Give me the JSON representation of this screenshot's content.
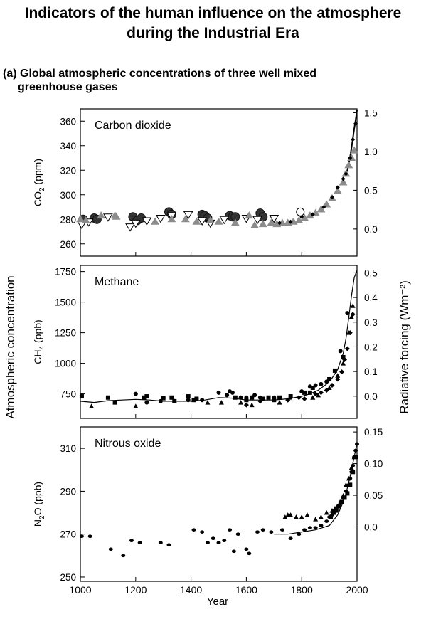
{
  "header": {
    "title_line1": "Indicators of the human influence on the atmosphere",
    "title_line2": "during the Industrial Era",
    "subtitle_line1": "(a) Global atmospheric concentrations of three well mixed",
    "subtitle_line2": "greenhouse gases"
  },
  "axes": {
    "left_label": "Atmospheric concentration",
    "right_label": "Radiative forcing  (Wm⁻²)",
    "xlabel": "Year",
    "xticks": [
      "1000",
      "1200",
      "1400",
      "1600",
      "1800",
      "2000"
    ]
  },
  "colors": {
    "ink": "#000000",
    "gray": "#8c8c8c"
  },
  "chart_data": [
    {
      "type": "scatter",
      "title": "Carbon dioxide",
      "ylabel_main": "CO",
      "ylabel_sub": "2",
      "ylabel_rest": " (ppm)",
      "xlim": [
        1000,
        2000
      ],
      "ylim": [
        250,
        370
      ],
      "yticks": [
        "260",
        "280",
        "300",
        "320",
        "340",
        "360"
      ],
      "right_ticks": [
        "0.0",
        "0.5",
        "1.0",
        "1.5"
      ],
      "right_lim": [
        -0.35,
        1.55
      ],
      "series": [
        {
          "marker": "circle-dark",
          "x": [
            1010,
            1050,
            1060,
            1190,
            1205,
            1220,
            1320,
            1330,
            1440,
            1450,
            1460,
            1540,
            1550,
            1560,
            1650,
            1660
          ],
          "y": [
            280,
            281,
            280,
            282,
            279,
            281,
            286,
            284,
            284,
            283,
            281,
            283,
            282,
            282,
            285,
            282
          ]
        },
        {
          "marker": "triangle-down-open",
          "x": [
            1005,
            1030,
            1100,
            1180,
            1200,
            1240,
            1290,
            1330,
            1390,
            1440,
            1470,
            1520,
            1600,
            1640,
            1700
          ],
          "y": [
            276,
            278,
            282,
            274,
            277,
            279,
            281,
            283,
            284,
            279,
            277,
            280,
            281,
            280,
            281
          ]
        },
        {
          "marker": "triangle-up-gray",
          "x": [
            1000,
            1020,
            1075,
            1125,
            1130,
            1270,
            1330,
            1380,
            1420,
            1470,
            1500,
            1560,
            1610,
            1630,
            1660,
            1690,
            1710,
            1730,
            1750,
            1770,
            1790,
            1810,
            1830,
            1850,
            1870,
            1890,
            1910,
            1930,
            1950,
            1960,
            1970,
            1980,
            1990
          ],
          "y": [
            280,
            279,
            283,
            283,
            282,
            278,
            280,
            280,
            278,
            279,
            278,
            277,
            283,
            275,
            276,
            277,
            276,
            277,
            277,
            278,
            279,
            281,
            283,
            285,
            288,
            292,
            297,
            303,
            310,
            317,
            324,
            330,
            336
          ]
        },
        {
          "marker": "diamond-dark",
          "x": [
            1720,
            1760,
            1800,
            1840,
            1880,
            1910,
            1930,
            1950,
            1960,
            1975,
            1985,
            1995
          ],
          "y": [
            277,
            278,
            282,
            284,
            290,
            298,
            306,
            313,
            317,
            330,
            345,
            358
          ]
        },
        {
          "marker": "circle-open",
          "x": [
            1795
          ],
          "y": [
            286
          ]
        }
      ],
      "curve": {
        "x": [
          1960,
          1965,
          1970,
          1975,
          1980,
          1985,
          1990,
          1995,
          2000
        ],
        "y": [
          317,
          320,
          325,
          331,
          338,
          346,
          354,
          361,
          369
        ]
      }
    },
    {
      "type": "scatter",
      "title": "Methane",
      "ylabel_main": "CH",
      "ylabel_sub": "4",
      "ylabel_rest": " (ppb)",
      "xlim": [
        1000,
        2000
      ],
      "ylim": [
        550,
        1800
      ],
      "yticks": [
        "750",
        "1000",
        "1250",
        "1500",
        "1750"
      ],
      "right_ticks": [
        "0.0",
        "0.1",
        "0.2",
        "0.3",
        "0.4",
        "0.5"
      ],
      "right_lim": [
        -0.09,
        0.53
      ],
      "series": [
        {
          "marker": "square",
          "x": [
            1005,
            1100,
            1125,
            1230,
            1240,
            1300,
            1330,
            1340,
            1390,
            1410,
            1420,
            1560,
            1600,
            1620,
            1660,
            1680,
            1700,
            1720,
            1760,
            1810,
            1830,
            1840,
            1900,
            1920,
            1950
          ],
          "y": [
            730,
            720,
            680,
            720,
            730,
            715,
            720,
            690,
            730,
            700,
            710,
            720,
            700,
            720,
            710,
            720,
            700,
            720,
            730,
            760,
            760,
            800,
            870,
            940,
            1050
          ]
        },
        {
          "marker": "circle",
          "x": [
            1200,
            1240,
            1290,
            1390,
            1420,
            1440,
            1500,
            1530,
            1540,
            1550,
            1580,
            1600,
            1630,
            1650,
            1700,
            1760,
            1800,
            1830,
            1850,
            1870,
            1890,
            1940,
            1965
          ],
          "y": [
            750,
            680,
            690,
            700,
            710,
            700,
            760,
            740,
            770,
            760,
            720,
            720,
            740,
            720,
            720,
            720,
            770,
            810,
            820,
            830,
            850,
            1100,
            1410
          ]
        },
        {
          "marker": "triangle-up",
          "x": [
            1040,
            1200,
            1340,
            1460,
            1510,
            1580,
            1620,
            1720,
            1840,
            1860,
            1900,
            1930,
            1950,
            1970,
            1980,
            1985
          ],
          "y": [
            650,
            650,
            690,
            680,
            680,
            680,
            660,
            680,
            720,
            740,
            800,
            900,
            1000,
            1250,
            1380,
            1470
          ]
        },
        {
          "marker": "diamond",
          "x": [
            1600,
            1650,
            1750,
            1790,
            1810,
            1850,
            1870,
            1890,
            1910,
            1930,
            1945,
            1955,
            1965,
            1975,
            1985
          ],
          "y": [
            660,
            690,
            700,
            720,
            710,
            750,
            760,
            780,
            820,
            870,
            930,
            1030,
            1120,
            1250,
            1400
          ]
        }
      ],
      "curve": {
        "x": [
          1000,
          1050,
          1100,
          1150,
          1200,
          1250,
          1300,
          1350,
          1400,
          1450,
          1500,
          1550,
          1600,
          1650,
          1700,
          1750,
          1800,
          1830,
          1860,
          1890,
          1910,
          1930,
          1950,
          1960,
          1970,
          1980,
          1990,
          2000
        ],
        "y": [
          690,
          680,
          695,
          700,
          705,
          700,
          690,
          690,
          690,
          700,
          720,
          715,
          700,
          700,
          700,
          710,
          730,
          750,
          780,
          830,
          880,
          950,
          1080,
          1200,
          1370,
          1550,
          1700,
          1760
        ]
      }
    },
    {
      "type": "scatter",
      "title": "Nitrous oxide",
      "ylabel_main": "N",
      "ylabel_sub": "2",
      "ylabel_rest": "O  (ppb)",
      "xlim": [
        1000,
        2000
      ],
      "ylim": [
        248,
        320
      ],
      "yticks": [
        "250",
        "270",
        "290",
        "310"
      ],
      "right_ticks": [
        "0.0",
        "0.05",
        "0.10",
        "0.15"
      ],
      "right_lim": [
        -0.086,
        0.158
      ],
      "xlabel": "Year",
      "series": [
        {
          "marker": "ellipse",
          "x": [
            1005,
            1035,
            1110,
            1155,
            1185,
            1215,
            1290,
            1320,
            1410,
            1440,
            1460,
            1480,
            1500,
            1520,
            1540,
            1555,
            1570,
            1600,
            1610,
            1640,
            1660,
            1690,
            1730,
            1760,
            1790,
            1810,
            1830,
            1850,
            1870,
            1890,
            1900,
            1910,
            1920,
            1930,
            1940,
            1950,
            1960,
            1970,
            1975,
            1980,
            1985,
            1990,
            1995,
            2000
          ],
          "y": [
            269,
            269,
            263,
            260,
            267,
            266,
            266,
            265,
            272,
            271,
            266,
            268,
            266,
            267,
            272,
            262,
            270,
            263,
            261,
            271,
            272,
            271,
            272,
            268,
            270,
            272,
            273,
            273,
            274,
            276,
            278,
            279,
            281,
            283,
            285,
            287,
            290,
            293,
            296,
            299,
            302,
            306,
            309,
            312
          ]
        },
        {
          "marker": "triangle-up",
          "x": [
            1740,
            1750,
            1760,
            1780,
            1800,
            1820,
            1850,
            1870,
            1890,
            1910,
            1920,
            1930,
            1940,
            1950,
            1960,
            1970,
            1980,
            1990
          ],
          "y": [
            278,
            279,
            279,
            278,
            278,
            279,
            277,
            278,
            280,
            281,
            282,
            283,
            285,
            288,
            293,
            296,
            301,
            306
          ]
        },
        {
          "marker": "square",
          "x": [
            1905,
            1915,
            1925,
            1935,
            1945,
            1955,
            1965,
            1975,
            1985,
            1995
          ],
          "y": [
            278,
            280,
            281,
            283,
            285,
            287,
            289,
            293,
            299,
            306
          ]
        }
      ],
      "curve": {
        "x": [
          1700,
          1750,
          1800,
          1850,
          1900,
          1930,
          1950,
          1960,
          1970,
          1980,
          1990,
          2000
        ],
        "y": [
          270,
          270,
          271,
          272,
          274,
          279,
          285,
          289,
          294,
          300,
          306,
          313
        ]
      }
    }
  ]
}
